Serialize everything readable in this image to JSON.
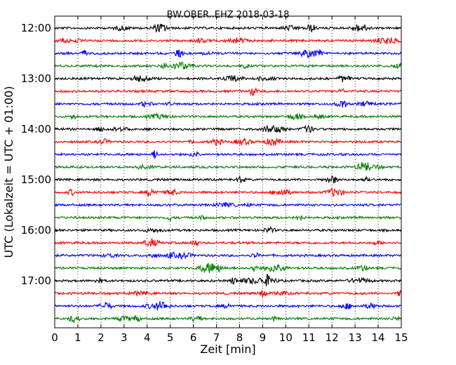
{
  "chart_data": {
    "type": "line",
    "title": "BW.OBER..EHZ 2018-03-18",
    "xlabel": "Zeit  [min]",
    "ylabel": "UTC (Lokalzeit = UTC + 01:00)",
    "xlim": [
      0,
      15
    ],
    "xticks": [
      "0",
      "1",
      "2",
      "3",
      "4",
      "5",
      "6",
      "7",
      "8",
      "9",
      "10",
      "11",
      "12",
      "13",
      "14",
      "15"
    ],
    "yticks": [
      "12:00",
      "13:00",
      "14:00",
      "15:00",
      "16:00",
      "17:00"
    ],
    "grid": "vertical dotted",
    "trace_colors": [
      "#000000",
      "#ff0000",
      "#0000ff",
      "#008000"
    ],
    "traces": [
      {
        "start": "12:00",
        "color": "#000000"
      },
      {
        "start": "12:15",
        "color": "#ff0000"
      },
      {
        "start": "12:30",
        "color": "#0000ff"
      },
      {
        "start": "12:45",
        "color": "#008000"
      },
      {
        "start": "13:00",
        "color": "#000000"
      },
      {
        "start": "13:15",
        "color": "#ff0000"
      },
      {
        "start": "13:30",
        "color": "#0000ff"
      },
      {
        "start": "13:45",
        "color": "#008000"
      },
      {
        "start": "14:00",
        "color": "#000000"
      },
      {
        "start": "14:15",
        "color": "#ff0000"
      },
      {
        "start": "14:30",
        "color": "#0000ff"
      },
      {
        "start": "14:45",
        "color": "#008000"
      },
      {
        "start": "15:00",
        "color": "#000000"
      },
      {
        "start": "15:15",
        "color": "#ff0000"
      },
      {
        "start": "15:30",
        "color": "#0000ff"
      },
      {
        "start": "15:45",
        "color": "#008000"
      },
      {
        "start": "16:00",
        "color": "#000000"
      },
      {
        "start": "16:15",
        "color": "#ff0000"
      },
      {
        "start": "16:30",
        "color": "#0000ff"
      },
      {
        "start": "16:45",
        "color": "#008000"
      },
      {
        "start": "17:00",
        "color": "#000000"
      },
      {
        "start": "17:15",
        "color": "#ff0000"
      },
      {
        "start": "17:30",
        "color": "#0000ff"
      },
      {
        "start": "17:45",
        "color": "#008000"
      }
    ]
  }
}
